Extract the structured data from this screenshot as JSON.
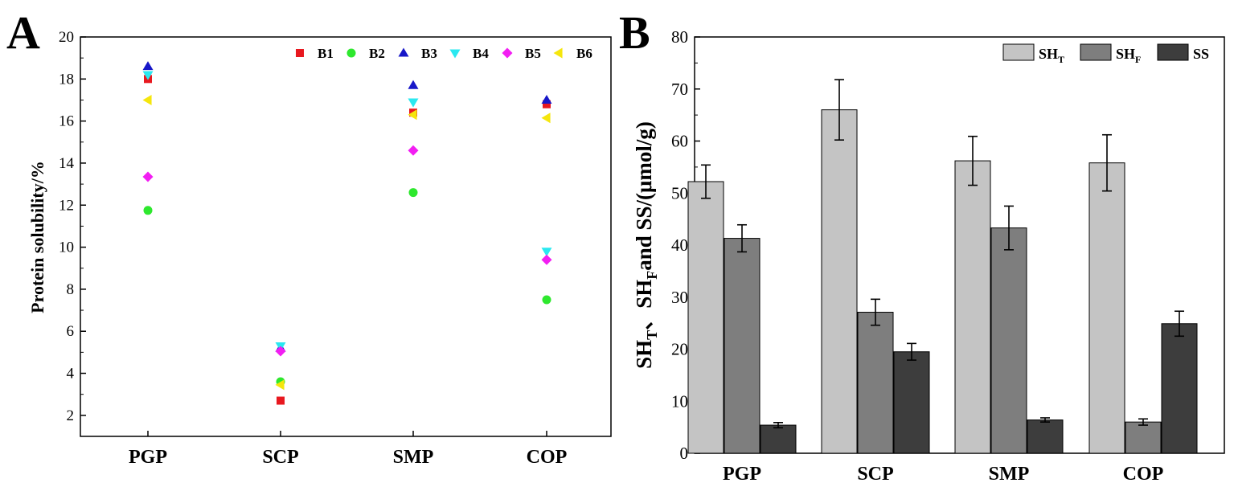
{
  "chart_data": [
    {
      "panel": "A",
      "type": "scatter",
      "title": "",
      "xlabel": "",
      "ylabel": "Protein solubility/%",
      "ylim": [
        1,
        20
      ],
      "yticks": [
        2,
        4,
        6,
        8,
        10,
        12,
        14,
        16,
        18,
        20
      ],
      "categories": [
        "PGP",
        "SCP",
        "SMP",
        "COP"
      ],
      "legend_position": "top",
      "series": [
        {
          "name": "B1",
          "marker": "square",
          "color": "#e8181f",
          "values": [
            18.0,
            2.7,
            16.4,
            16.8
          ]
        },
        {
          "name": "B2",
          "marker": "circle",
          "color": "#2ee82e",
          "values": [
            11.75,
            3.6,
            12.6,
            7.5
          ]
        },
        {
          "name": "B3",
          "marker": "triangle-up",
          "color": "#1717c8",
          "values": [
            18.6,
            5.2,
            17.7,
            17.0
          ]
        },
        {
          "name": "B4",
          "marker": "triangle-down",
          "color": "#2ae8f0",
          "values": [
            18.2,
            5.3,
            16.9,
            9.8
          ]
        },
        {
          "name": "B5",
          "marker": "diamond",
          "color": "#f21ef2",
          "values": [
            13.35,
            5.05,
            14.6,
            9.4
          ]
        },
        {
          "name": "B6",
          "marker": "triangle-left",
          "color": "#f5e60d",
          "values": [
            17.0,
            3.45,
            16.3,
            16.15
          ]
        }
      ]
    },
    {
      "panel": "B",
      "type": "bar",
      "title": "",
      "xlabel": "",
      "ylabel": "SHT、SHFand SS/(μmol/g)",
      "ylabel_parts": [
        "SH",
        "T",
        "、",
        "SH",
        "F",
        "and SS/(μmol/g)"
      ],
      "ylim": [
        0,
        80
      ],
      "yticks": [
        0,
        10,
        20,
        30,
        40,
        50,
        60,
        70,
        80
      ],
      "categories": [
        "PGP",
        "SCP",
        "SMP",
        "COP"
      ],
      "legend_position": "top-right",
      "series": [
        {
          "name": "SHT",
          "label_main": "SH",
          "label_sub": "T",
          "color": "#c4c4c4",
          "values": [
            52.2,
            66.0,
            56.2,
            55.8
          ],
          "errors": [
            3.2,
            5.8,
            4.7,
            5.4
          ]
        },
        {
          "name": "SHF",
          "label_main": "SH",
          "label_sub": "F",
          "color": "#7e7e7e",
          "values": [
            41.3,
            27.1,
            43.3,
            6.0
          ],
          "errors": [
            2.6,
            2.5,
            4.2,
            0.6
          ]
        },
        {
          "name": "SS",
          "label_main": "SS",
          "label_sub": "",
          "color": "#3d3d3d",
          "values": [
            5.4,
            19.5,
            6.4,
            24.9
          ],
          "errors": [
            0.5,
            1.6,
            0.4,
            2.4
          ]
        }
      ]
    }
  ]
}
